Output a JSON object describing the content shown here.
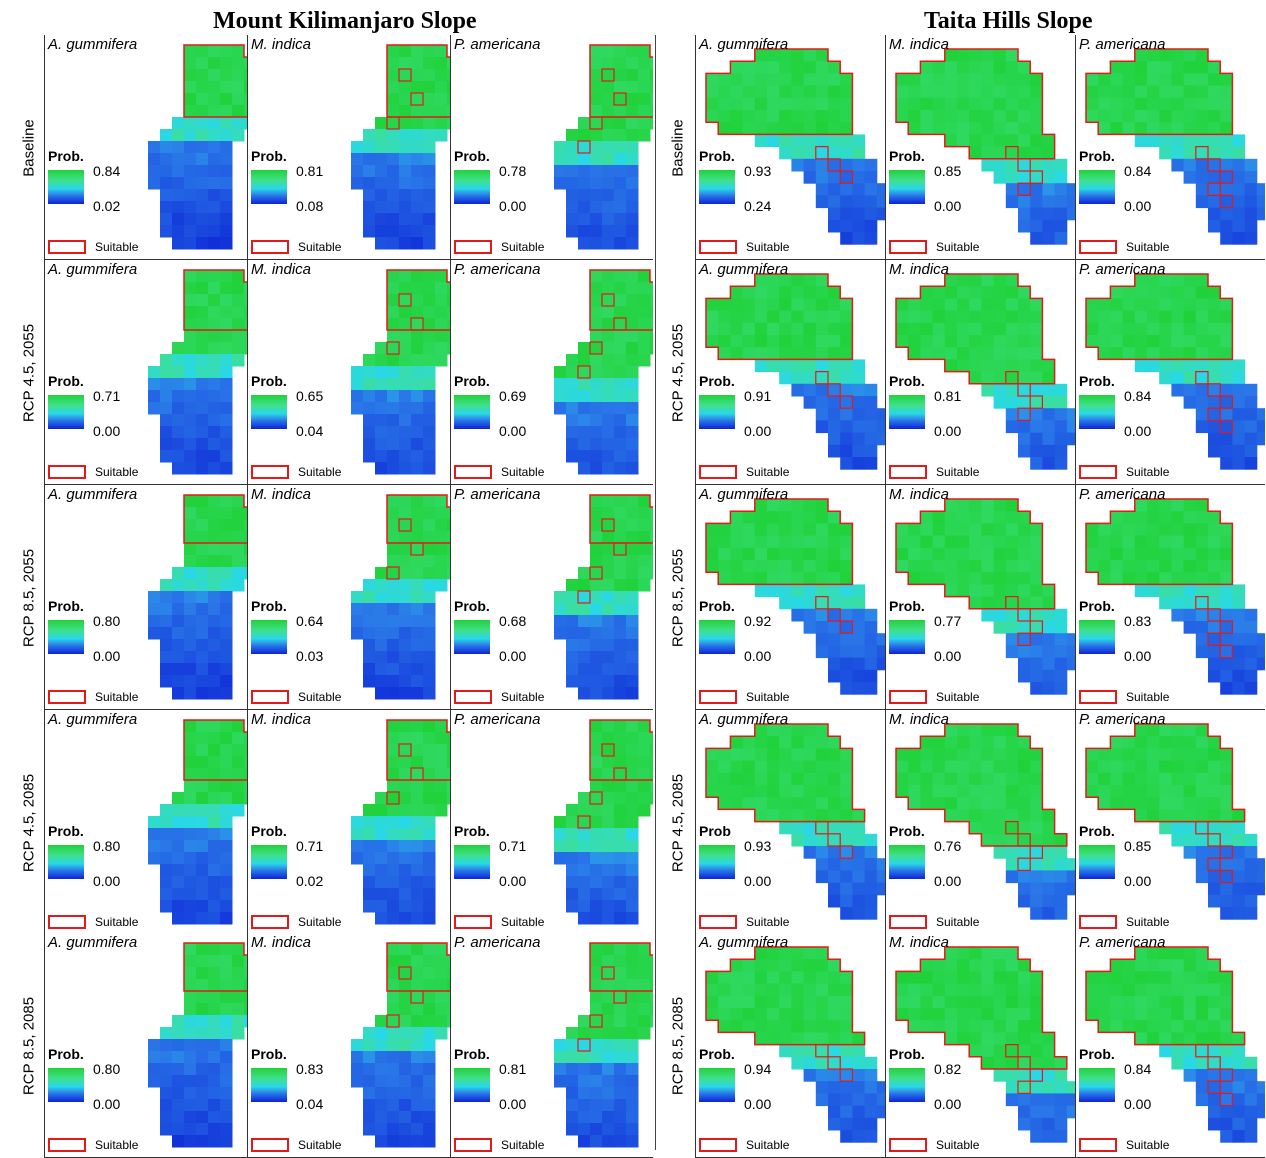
{
  "titles": {
    "left": "Mount Kilimanjaro Slope",
    "right": "Taita Hills Slope"
  },
  "rows": [
    "Baseline",
    "RCP 4.5, 2055",
    "RCP 8.5, 2055",
    "RCP 4.5, 2085",
    "RCP 8.5, 2085"
  ],
  "species": [
    "A. gummifera",
    "M. indica",
    "P. americana"
  ],
  "colors": {
    "high_probability": "#20d23a",
    "mid_probability": "#28d8e8",
    "low_probability": "#0c22d6",
    "suitable_outline": "#e21a1a"
  },
  "legend": {
    "prob_label": "Prob.",
    "suitable_label": "Suitable"
  },
  "panels": {
    "kilimanjaro": [
      [
        {
          "prob_label": "Prob.",
          "max": "0.84",
          "min": "0.02"
        },
        {
          "prob_label": "Prob.",
          "max": "0.81",
          "min": "0.08"
        },
        {
          "prob_label": "Prob.",
          "max": "0.78",
          "min": "0.00"
        }
      ],
      [
        {
          "prob_label": "Prob.",
          "max": "0.71",
          "min": "0.00"
        },
        {
          "prob_label": "Prob.",
          "max": "0.65",
          "min": "0.04"
        },
        {
          "prob_label": "Prob.",
          "max": "0.69",
          "min": "0.00"
        }
      ],
      [
        {
          "prob_label": "Prob.",
          "max": "0.80",
          "min": "0.00"
        },
        {
          "prob_label": "Prob.",
          "max": "0.64",
          "min": "0.03"
        },
        {
          "prob_label": "Prob.",
          "max": "0.68",
          "min": "0.00"
        }
      ],
      [
        {
          "prob_label": "Prob.",
          "max": "0.80",
          "min": "0.00"
        },
        {
          "prob_label": "Prob.",
          "max": "0.71",
          "min": "0.02"
        },
        {
          "prob_label": "Prob.",
          "max": "0.71",
          "min": "0.00"
        }
      ],
      [
        {
          "prob_label": "Prob.",
          "max": "0.80",
          "min": "0.00"
        },
        {
          "prob_label": "Prob.",
          "max": "0.83",
          "min": "0.04"
        },
        {
          "prob_label": "Prob.",
          "max": "0.81",
          "min": "0.00"
        }
      ]
    ],
    "taita": [
      [
        {
          "prob_label": "Prob.",
          "max": "0.93",
          "min": "0.24"
        },
        {
          "prob_label": "Prob.",
          "max": "0.85",
          "min": "0.00"
        },
        {
          "prob_label": "Prob.",
          "max": "0.84",
          "min": "0.00"
        }
      ],
      [
        {
          "prob_label": "Prob.",
          "max": "0.91",
          "min": "0.00"
        },
        {
          "prob_label": "Prob.",
          "max": "0.81",
          "min": "0.00"
        },
        {
          "prob_label": "Prob.",
          "max": "0.84",
          "min": "0.00"
        }
      ],
      [
        {
          "prob_label": "Prob.",
          "max": "0.92",
          "min": "0.00"
        },
        {
          "prob_label": "Prob.",
          "max": "0.77",
          "min": "0.00"
        },
        {
          "prob_label": "Prob.",
          "max": "0.83",
          "min": "0.00"
        }
      ],
      [
        {
          "prob_label": "Prob",
          "max": "0.93",
          "min": "0.00"
        },
        {
          "prob_label": "Prob.",
          "max": "0.76",
          "min": "0.00"
        },
        {
          "prob_label": "Prob.",
          "max": "0.85",
          "min": "0.00"
        }
      ],
      [
        {
          "prob_label": "Prob.",
          "max": "0.94",
          "min": "0.00"
        },
        {
          "prob_label": "Prob.",
          "max": "0.82",
          "min": "0.00"
        },
        {
          "prob_label": "Prob.",
          "max": "0.84",
          "min": "0.00"
        }
      ]
    ]
  }
}
